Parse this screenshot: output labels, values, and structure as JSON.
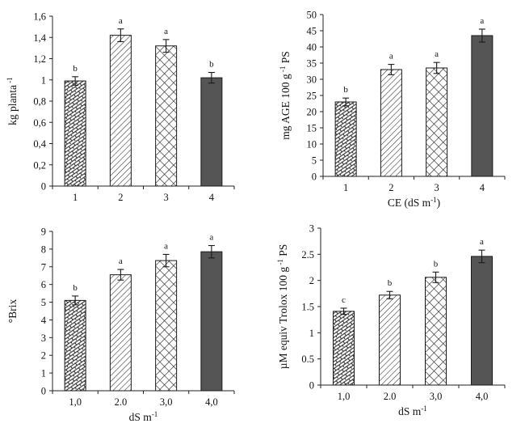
{
  "chart_data": [
    {
      "type": "bar",
      "panel": "top-left",
      "categories": [
        "1",
        "2",
        "3",
        "4"
      ],
      "values": [
        0.99,
        1.42,
        1.32,
        1.02
      ],
      "errors": [
        0.04,
        0.06,
        0.06,
        0.05
      ],
      "letters": [
        "b",
        "a",
        "a",
        "b"
      ],
      "patterns": [
        "brick",
        "diag",
        "cross",
        "solid"
      ],
      "ylim": [
        0,
        1.6
      ],
      "yticks": [
        0,
        0.2,
        0.4,
        0.6,
        0.8,
        1.0,
        1.2,
        1.4,
        1.6
      ],
      "ytick_labels": [
        "0",
        "0,2",
        "0,4",
        "0,6",
        "0,8",
        "1",
        "1,2",
        "1,4",
        "1,6"
      ],
      "ylabel": "kg planta",
      "ylabel_sup": "-1",
      "xlabel": "",
      "xlabel_sup": "",
      "xlabel_tail": ""
    },
    {
      "type": "bar",
      "panel": "top-right",
      "categories": [
        "1",
        "2",
        "3",
        "4"
      ],
      "values": [
        23,
        33,
        33.5,
        43.5
      ],
      "errors": [
        1.2,
        1.6,
        1.7,
        2.0
      ],
      "letters": [
        "b",
        "a",
        "a",
        "a"
      ],
      "patterns": [
        "brick",
        "diag",
        "cross",
        "solid"
      ],
      "ylim": [
        0,
        50
      ],
      "yticks": [
        0,
        5,
        10,
        15,
        20,
        25,
        30,
        35,
        40,
        45,
        50
      ],
      "ytick_labels": [
        "0",
        "5",
        "10",
        "15",
        "20",
        "25",
        "30",
        "35",
        "40",
        "45",
        "50"
      ],
      "ylabel": "mg AGE 100 g",
      "ylabel_sup": "-1",
      "ylabel_tail": " PS",
      "xlabel": "CE (dS m",
      "xlabel_sup": "-1",
      "xlabel_tail": ")"
    },
    {
      "type": "bar",
      "panel": "bottom-left",
      "categories": [
        "1,0",
        "2.0",
        "3,0",
        "4,0"
      ],
      "values": [
        5.1,
        6.55,
        7.35,
        7.85
      ],
      "errors": [
        0.25,
        0.3,
        0.35,
        0.35
      ],
      "letters": [
        "b",
        "a",
        "a",
        "a"
      ],
      "patterns": [
        "brick",
        "diag",
        "cross",
        "solid"
      ],
      "ylim": [
        0,
        9
      ],
      "yticks": [
        0,
        1,
        2,
        3,
        4,
        5,
        6,
        7,
        8,
        9
      ],
      "ytick_labels": [
        "0",
        "1",
        "2",
        "3",
        "4",
        "5",
        "6",
        "7",
        "8",
        "9"
      ],
      "ylabel": "°Brix",
      "ylabel_sup": "",
      "ylabel_tail": "",
      "xlabel": "dS m",
      "xlabel_sup": "-1",
      "xlabel_tail": ""
    },
    {
      "type": "bar",
      "panel": "bottom-right",
      "categories": [
        "1,0",
        "2.0",
        "3,0",
        "4,0"
      ],
      "values": [
        1.41,
        1.72,
        2.06,
        2.46
      ],
      "errors": [
        0.06,
        0.07,
        0.1,
        0.12
      ],
      "letters": [
        "c",
        "b",
        "b",
        "a"
      ],
      "patterns": [
        "brick",
        "diag",
        "cross",
        "solid"
      ],
      "ylim": [
        0,
        3
      ],
      "yticks": [
        0,
        0.5,
        1,
        1.5,
        2,
        2.5,
        3
      ],
      "ytick_labels": [
        "0",
        "0.5",
        "1",
        "1.5",
        "2",
        "2.5",
        "3"
      ],
      "ylabel": "µM equiv Trolox 100 g",
      "ylabel_sup": "-1",
      "ylabel_tail": " PS",
      "xlabel": "dS m",
      "xlabel_sup": "-1",
      "xlabel_tail": ""
    }
  ],
  "colors": {
    "bar_outline": "#1a1a1a",
    "pattern_ink": "#2b2b2b",
    "solid_fill": "#555555",
    "axis": "#222222"
  }
}
